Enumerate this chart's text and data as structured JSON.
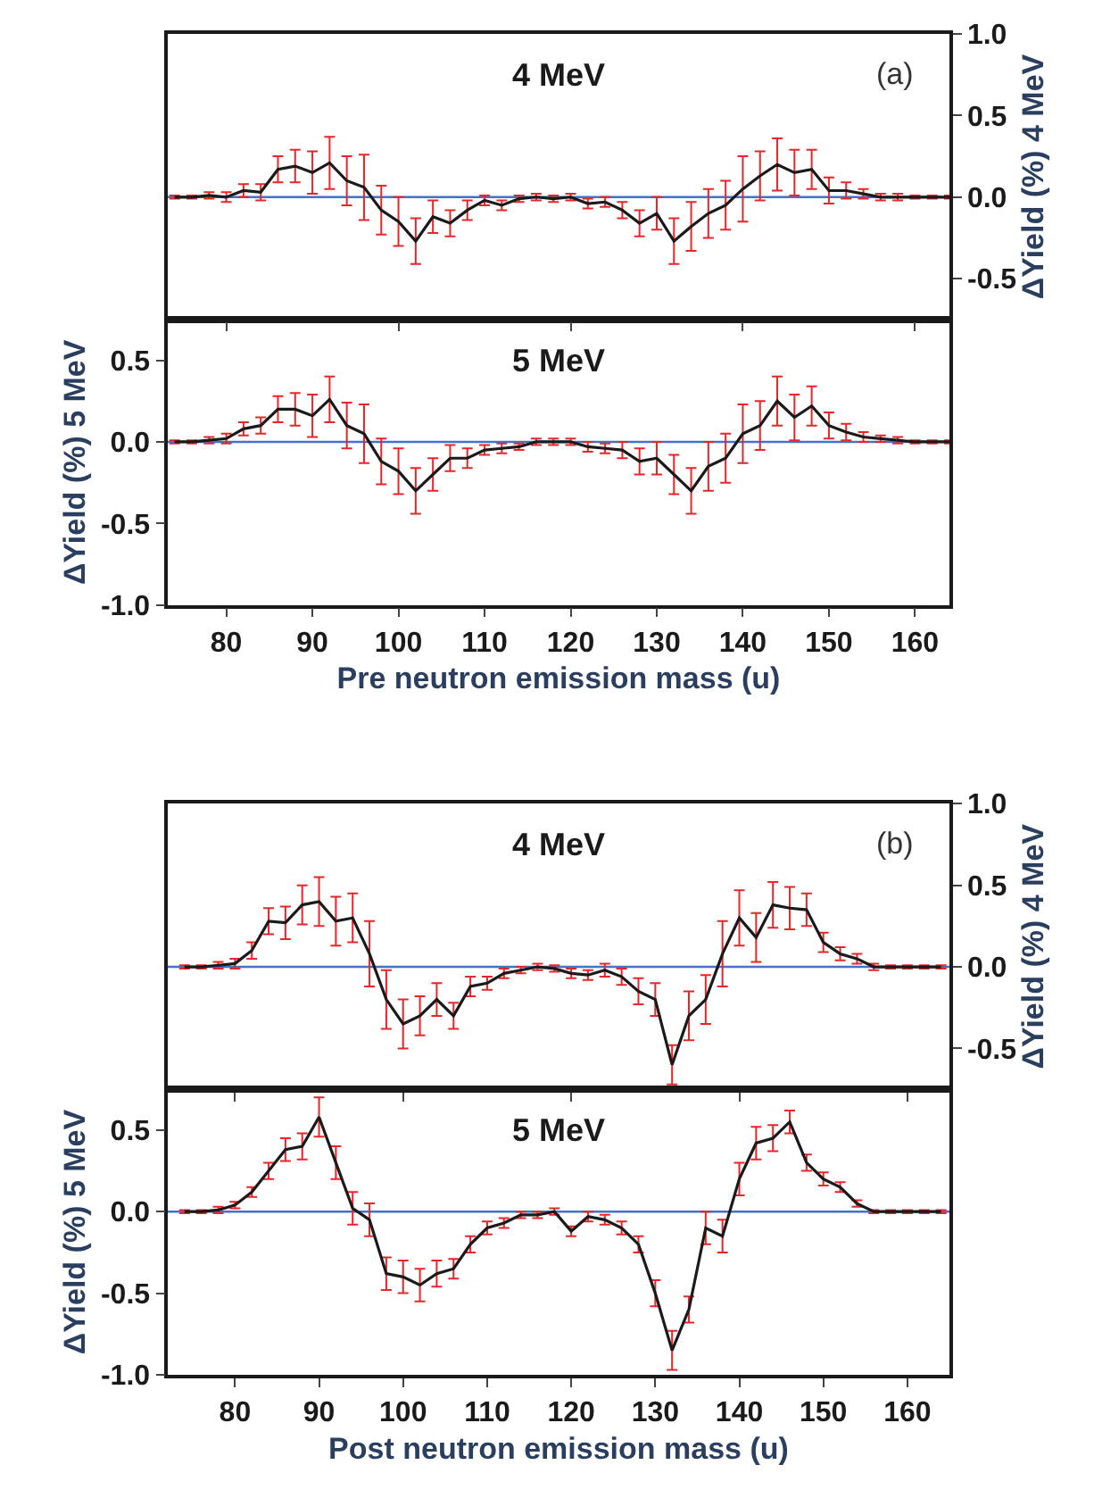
{
  "chart_data": [
    {
      "type": "line",
      "annotations": [
        "4 MeV",
        "(a)"
      ],
      "y2label": "ΔYield (%) 4 MeV",
      "tick_labels": "y2",
      "x": [
        74,
        76,
        78,
        80,
        82,
        84,
        86,
        88,
        90,
        92,
        94,
        96,
        98,
        100,
        102,
        104,
        106,
        108,
        110,
        112,
        114,
        116,
        118,
        120,
        122,
        124,
        126,
        128,
        130,
        132,
        134,
        136,
        138,
        140,
        142,
        144,
        146,
        148,
        150,
        152,
        154,
        156,
        158,
        160,
        162,
        164
      ],
      "series": [
        {
          "color": "#1a1a1a",
          "axis": "y2",
          "values": [
            0,
            0,
            0.01,
            0,
            0.04,
            0.03,
            0.17,
            0.19,
            0.15,
            0.21,
            0.1,
            0.06,
            -0.08,
            -0.15,
            -0.27,
            -0.12,
            -0.16,
            -0.08,
            -0.02,
            -0.05,
            -0.01,
            0,
            -0.01,
            0,
            -0.04,
            -0.03,
            -0.08,
            -0.16,
            -0.1,
            -0.27,
            -0.18,
            -0.1,
            -0.05,
            0.05,
            0.13,
            0.2,
            0.15,
            0.17,
            0.04,
            0.04,
            0.02,
            0,
            0,
            0,
            0,
            0
          ],
          "errors": [
            0.01,
            0.01,
            0.02,
            0.03,
            0.04,
            0.05,
            0.08,
            0.1,
            0.13,
            0.16,
            0.15,
            0.2,
            0.15,
            0.15,
            0.14,
            0.1,
            0.08,
            0.06,
            0.03,
            0.03,
            0.02,
            0.02,
            0.02,
            0.02,
            0.03,
            0.03,
            0.05,
            0.08,
            0.1,
            0.14,
            0.15,
            0.15,
            0.15,
            0.2,
            0.15,
            0.16,
            0.14,
            0.12,
            0.08,
            0.05,
            0.03,
            0.02,
            0.02,
            0.01,
            0.01,
            0.01
          ]
        }
      ],
      "xlim": [
        73.2,
        164
      ],
      "y2lim": [
        -0.75,
        1.0
      ],
      "y2ticks": [
        {
          "value": -0.5,
          "label": "-0.5"
        },
        {
          "value": 0,
          "label": "0.0"
        },
        {
          "value": 0.5,
          "label": "0.5"
        },
        {
          "value": 1.0,
          "label": "1.0"
        }
      ],
      "ref_lines": [
        {
          "axis": "y2",
          "value": 0,
          "color": "#4472c4"
        }
      ]
    },
    {
      "type": "line",
      "annotations": [
        "5 MeV"
      ],
      "ylabel": "ΔYield (%) 5 MeV",
      "xlabel": "Pre neutron emission mass (u)",
      "x": [
        74,
        76,
        78,
        80,
        82,
        84,
        86,
        88,
        90,
        92,
        94,
        96,
        98,
        100,
        102,
        104,
        106,
        108,
        110,
        112,
        114,
        116,
        118,
        120,
        122,
        124,
        126,
        128,
        130,
        132,
        134,
        136,
        138,
        140,
        142,
        144,
        146,
        148,
        150,
        152,
        154,
        156,
        158,
        160,
        162,
        164
      ],
      "series": [
        {
          "color": "#1a1a1a",
          "values": [
            0,
            0,
            0.01,
            0.02,
            0.08,
            0.1,
            0.2,
            0.2,
            0.16,
            0.26,
            0.1,
            0.05,
            -0.12,
            -0.18,
            -0.3,
            -0.2,
            -0.1,
            -0.1,
            -0.05,
            -0.04,
            -0.03,
            0,
            0,
            0,
            -0.03,
            -0.04,
            -0.05,
            -0.12,
            -0.1,
            -0.2,
            -0.3,
            -0.15,
            -0.1,
            0.05,
            0.1,
            0.25,
            0.15,
            0.22,
            0.1,
            0.06,
            0.03,
            0.02,
            0.01,
            0,
            0,
            0
          ],
          "errors": [
            0.01,
            0.01,
            0.02,
            0.03,
            0.04,
            0.05,
            0.08,
            0.1,
            0.13,
            0.14,
            0.14,
            0.18,
            0.14,
            0.14,
            0.14,
            0.1,
            0.08,
            0.06,
            0.03,
            0.03,
            0.02,
            0.02,
            0.02,
            0.02,
            0.03,
            0.03,
            0.05,
            0.08,
            0.1,
            0.12,
            0.14,
            0.15,
            0.15,
            0.18,
            0.15,
            0.15,
            0.14,
            0.12,
            0.08,
            0.05,
            0.03,
            0.02,
            0.02,
            0.01,
            0.01,
            0.01
          ]
        }
      ],
      "xlim": [
        73.2,
        164
      ],
      "xticks": [
        80,
        90,
        100,
        110,
        120,
        130,
        140,
        150,
        160
      ],
      "ylim": [
        -1.0,
        0.75
      ],
      "yticks": [
        {
          "value": -1.0,
          "label": "-1.0"
        },
        {
          "value": -0.5,
          "label": "-0.5"
        },
        {
          "value": 0,
          "label": "0.0"
        },
        {
          "value": 0.5,
          "label": "0.5"
        }
      ],
      "ref_lines": [
        {
          "axis": "y",
          "value": 0,
          "color": "#4472c4"
        }
      ]
    },
    {
      "type": "line",
      "annotations": [
        "4 MeV",
        "(b)"
      ],
      "y2label": "ΔYield (%) 4 MeV",
      "tick_labels": "y2",
      "x": [
        74,
        76,
        78,
        80,
        82,
        84,
        86,
        88,
        90,
        92,
        94,
        96,
        98,
        100,
        102,
        104,
        106,
        108,
        110,
        112,
        114,
        116,
        118,
        120,
        122,
        124,
        126,
        128,
        130,
        132,
        134,
        136,
        138,
        140,
        142,
        144,
        146,
        148,
        150,
        152,
        154,
        156,
        158,
        160,
        162,
        164
      ],
      "series": [
        {
          "color": "#1a1a1a",
          "axis": "y2",
          "values": [
            0,
            0,
            0.01,
            0.02,
            0.1,
            0.28,
            0.27,
            0.38,
            0.4,
            0.28,
            0.3,
            0.08,
            -0.2,
            -0.35,
            -0.3,
            -0.2,
            -0.3,
            -0.12,
            -0.1,
            -0.04,
            -0.02,
            0,
            -0.01,
            -0.04,
            -0.05,
            -0.02,
            -0.06,
            -0.15,
            -0.2,
            -0.6,
            -0.3,
            -0.2,
            0.08,
            0.3,
            0.18,
            0.38,
            0.36,
            0.35,
            0.15,
            0.08,
            0.05,
            0,
            0,
            0,
            0,
            0
          ],
          "errors": [
            0.01,
            0.01,
            0.02,
            0.03,
            0.05,
            0.08,
            0.1,
            0.12,
            0.15,
            0.15,
            0.15,
            0.2,
            0.18,
            0.15,
            0.12,
            0.1,
            0.08,
            0.06,
            0.04,
            0.03,
            0.02,
            0.02,
            0.02,
            0.03,
            0.03,
            0.04,
            0.05,
            0.08,
            0.1,
            0.12,
            0.15,
            0.15,
            0.2,
            0.17,
            0.15,
            0.14,
            0.13,
            0.1,
            0.06,
            0.04,
            0.03,
            0.02,
            0.01,
            0.01,
            0.01,
            0.01
          ]
        }
      ],
      "xlim": [
        72,
        165
      ],
      "y2lim": [
        -0.75,
        1.0
      ],
      "y2ticks": [
        {
          "value": -0.5,
          "label": "-0.5"
        },
        {
          "value": 0,
          "label": "0.0"
        },
        {
          "value": 0.5,
          "label": "0.5"
        },
        {
          "value": 1.0,
          "label": "1.0"
        }
      ],
      "ref_lines": [
        {
          "axis": "y2",
          "value": 0,
          "color": "#4472c4"
        }
      ]
    },
    {
      "type": "line",
      "annotations": [
        "5 MeV"
      ],
      "ylabel": "ΔYield (%) 5 MeV",
      "xlabel": "Post neutron emission mass (u)",
      "x": [
        74,
        76,
        78,
        80,
        82,
        84,
        86,
        88,
        90,
        92,
        94,
        96,
        98,
        100,
        102,
        104,
        106,
        108,
        110,
        112,
        114,
        116,
        118,
        120,
        122,
        124,
        126,
        128,
        130,
        132,
        134,
        136,
        138,
        140,
        142,
        144,
        146,
        148,
        150,
        152,
        154,
        156,
        158,
        160,
        162,
        164
      ],
      "series": [
        {
          "color": "#1a1a1a",
          "values": [
            0,
            0,
            0.01,
            0.04,
            0.12,
            0.25,
            0.38,
            0.4,
            0.58,
            0.3,
            0.02,
            -0.05,
            -0.38,
            -0.4,
            -0.45,
            -0.38,
            -0.35,
            -0.2,
            -0.1,
            -0.07,
            -0.02,
            -0.02,
            0,
            -0.12,
            -0.03,
            -0.05,
            -0.1,
            -0.2,
            -0.5,
            -0.85,
            -0.6,
            -0.1,
            -0.15,
            0.2,
            0.42,
            0.45,
            0.55,
            0.3,
            0.2,
            0.15,
            0.05,
            0,
            0,
            0,
            0,
            0
          ],
          "errors": [
            0.01,
            0.01,
            0.02,
            0.02,
            0.03,
            0.05,
            0.07,
            0.08,
            0.12,
            0.1,
            0.1,
            0.1,
            0.1,
            0.1,
            0.1,
            0.08,
            0.06,
            0.05,
            0.04,
            0.03,
            0.02,
            0.02,
            0.02,
            0.03,
            0.03,
            0.03,
            0.04,
            0.05,
            0.08,
            0.12,
            0.08,
            0.1,
            0.1,
            0.1,
            0.1,
            0.08,
            0.07,
            0.05,
            0.04,
            0.03,
            0.02,
            0.01,
            0.01,
            0.01,
            0.01,
            0.01
          ]
        }
      ],
      "xlim": [
        72,
        165
      ],
      "xticks": [
        80,
        90,
        100,
        110,
        120,
        130,
        140,
        150,
        160
      ],
      "ylim": [
        -1.0,
        0.75
      ],
      "yticks": [
        {
          "value": -1.0,
          "label": "-1.0"
        },
        {
          "value": -0.5,
          "label": "-0.5"
        },
        {
          "value": 0,
          "label": "0.0"
        },
        {
          "value": 0.5,
          "label": "0.5"
        }
      ],
      "ref_lines": [
        {
          "axis": "y",
          "value": 0,
          "color": "#4472c4"
        }
      ]
    }
  ]
}
